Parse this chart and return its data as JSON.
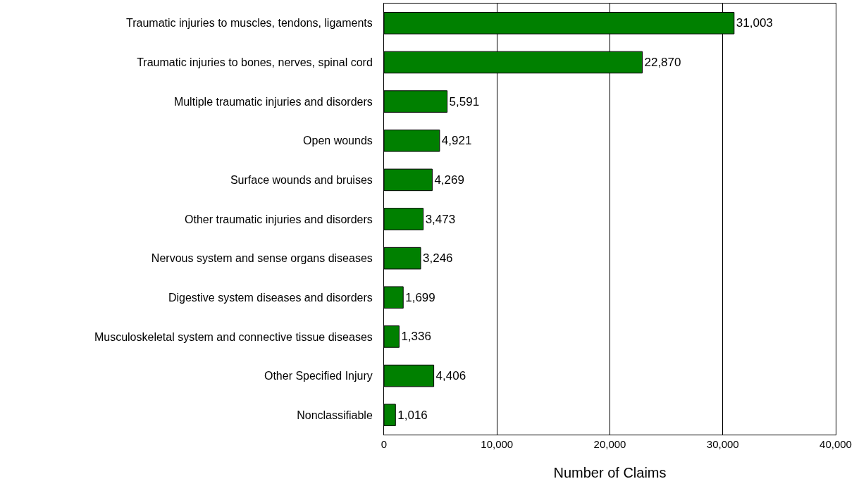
{
  "chart_data": {
    "type": "bar",
    "orientation": "horizontal",
    "xlabel": "Number of Claims",
    "categories": [
      "Traumatic injuries to muscles, tendons, ligaments",
      "Traumatic injuries to bones, nerves, spinal cord",
      "Multiple traumatic injuries and disorders",
      "Open wounds",
      "Surface wounds and bruises",
      "Other traumatic injuries and disorders",
      "Nervous system and sense organs diseases",
      "Digestive system diseases and disorders",
      "Musculoskeletal system and connective tissue diseases",
      "Other Specified Injury",
      "Nonclassifiable"
    ],
    "values": [
      31003,
      22870,
      5591,
      4921,
      4269,
      3473,
      3246,
      1699,
      1336,
      4406,
      1016
    ],
    "value_labels": [
      "31,003",
      "22,870",
      "5,591",
      "4,921",
      "4,269",
      "3,473",
      "3,246",
      "1,699",
      "1,336",
      "4,406",
      "1,016"
    ],
    "color": "#008000",
    "xlim": [
      0,
      40000
    ],
    "xticks": [
      0,
      {
        "value": 10000,
        "label": "10,000"
      },
      {
        "value": 20000,
        "label": "20,000"
      },
      {
        "value": 30000,
        "label": "30,000"
      },
      {
        "value": 40000,
        "label": "40,000"
      }
    ],
    "grid": "x",
    "legend": false
  }
}
